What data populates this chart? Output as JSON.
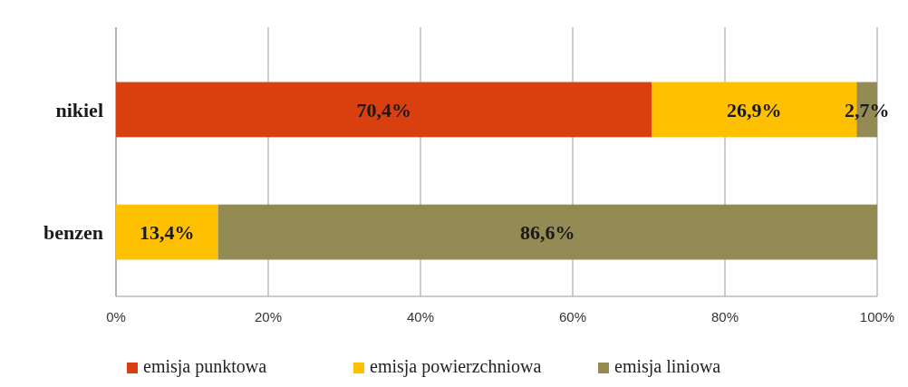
{
  "chart_data": {
    "type": "bar",
    "orientation": "horizontal",
    "stacked": true,
    "categories": [
      "nikiel",
      "benzen"
    ],
    "series": [
      {
        "name": "emisja punktowa",
        "color": "#d94010",
        "values": [
          70.4,
          null
        ],
        "value_labels": [
          "70,4%",
          null
        ]
      },
      {
        "name": "emisja powierzchniowa",
        "color": "#ffc000",
        "values": [
          26.9,
          13.4
        ],
        "value_labels": [
          "26,9%",
          "13,4%"
        ]
      },
      {
        "name": "emisja liniowa",
        "color": "#948a54",
        "values": [
          2.7,
          86.6
        ],
        "value_labels": [
          "2,7%",
          "86,6%"
        ]
      }
    ],
    "xlim": [
      0,
      100
    ],
    "xticks": [
      {
        "value": 0,
        "label": "0%"
      },
      {
        "value": 20,
        "label": "20%"
      },
      {
        "value": 40,
        "label": "40%"
      },
      {
        "value": 60,
        "label": "60%"
      },
      {
        "value": 80,
        "label": "80%"
      },
      {
        "value": 100,
        "label": "100%"
      }
    ],
    "grid": "x",
    "legend": "bottom"
  }
}
